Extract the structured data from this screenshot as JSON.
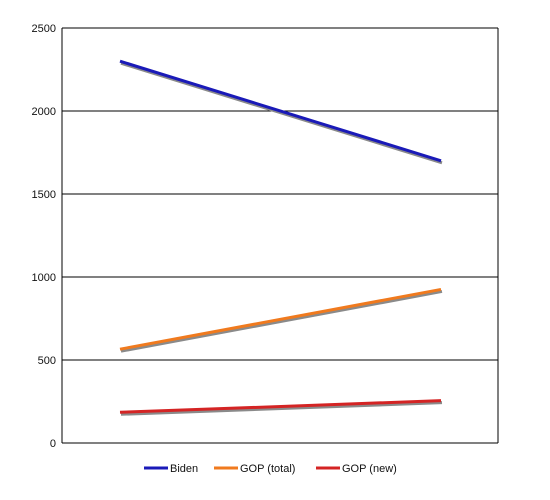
{
  "chart_data": {
    "type": "line",
    "x": [
      1,
      2
    ],
    "ylim": [
      0,
      2500
    ],
    "y_ticks": [
      0,
      500,
      1000,
      1500,
      2000,
      2500
    ],
    "y_tick_labels": [
      "0",
      "500",
      "1000",
      "1500",
      "2000",
      "2500"
    ],
    "grid": "horizontal",
    "legend_position": "bottom",
    "series": [
      {
        "name": "Biden",
        "values": [
          2300,
          1700
        ],
        "color": "#1a1ab8"
      },
      {
        "name": "GOP (total)",
        "values": [
          565,
          925
        ],
        "color": "#f07a1e"
      },
      {
        "name": "GOP (new)",
        "values": [
          185,
          255
        ],
        "color": "#d42424"
      }
    ]
  }
}
